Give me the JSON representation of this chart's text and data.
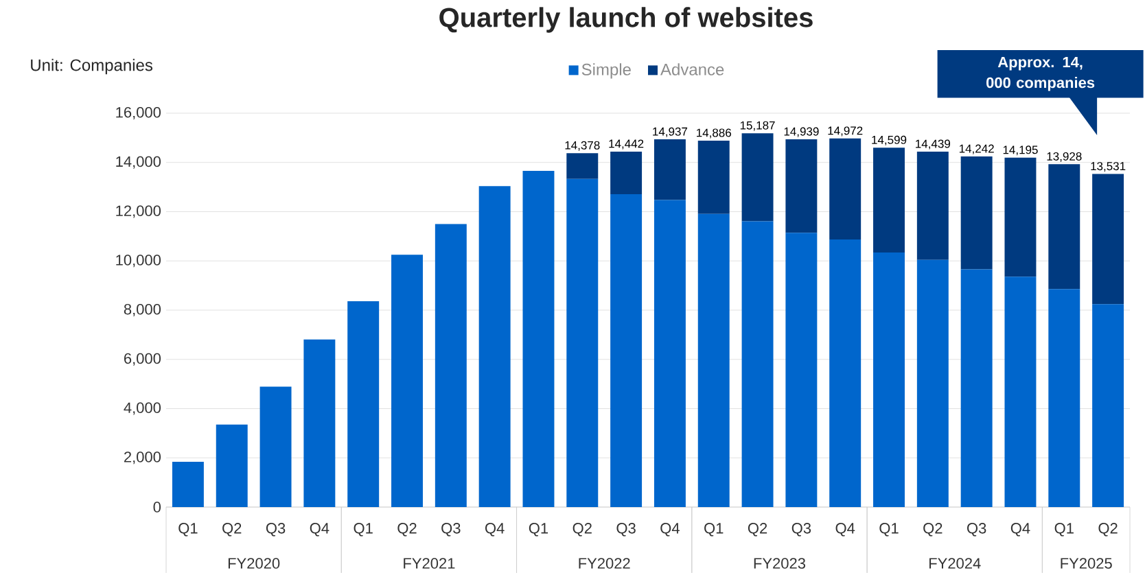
{
  "chart_data": {
    "type": "bar",
    "stacked": true,
    "title": "Quarterly launch of websites",
    "ylabel": "Unit: Companies",
    "categories": [
      "Q1",
      "Q2",
      "Q3",
      "Q4",
      "Q1",
      "Q2",
      "Q3",
      "Q4",
      "Q1",
      "Q2",
      "Q3",
      "Q4",
      "Q1",
      "Q2",
      "Q3",
      "Q4",
      "Q1",
      "Q2",
      "Q3",
      "Q4",
      "Q1",
      "Q2"
    ],
    "series": [
      {
        "name": "Simple",
        "color": "#0066cc",
        "values": [
          1840,
          3350,
          4890,
          6810,
          8360,
          10250,
          11500,
          13040,
          13660,
          13330,
          12710,
          12470,
          11910,
          11610,
          11140,
          10870,
          10340,
          10040,
          9660,
          9360,
          8860,
          8240
        ]
      },
      {
        "name": "Advance",
        "color": "#003a80",
        "values": [
          null,
          null,
          null,
          null,
          null,
          null,
          null,
          null,
          null,
          1048,
          1732,
          2467,
          2976,
          3577,
          3799,
          4102,
          4259,
          4399,
          4582,
          4835,
          5068,
          5291
        ]
      }
    ],
    "totals": [
      null,
      null,
      null,
      null,
      null,
      null,
      null,
      null,
      null,
      "14,378",
      "14,442",
      "14,937",
      "14,886",
      "15,187",
      "14,939",
      "14,972",
      "14,599",
      "14,439",
      "14,242",
      "14,195",
      "13,928",
      "13,531"
    ],
    "ylim": [
      0,
      16000
    ],
    "yticks": [
      0,
      {
        "value": 2000,
        "label": "2,000"
      },
      {
        "value": 4000,
        "label": "4,000"
      },
      {
        "value": 6000,
        "label": "6,000"
      },
      {
        "value": 8000,
        "label": "8,000"
      },
      {
        "value": 10000,
        "label": "10,000"
      },
      {
        "value": 12000,
        "label": "12,000"
      },
      {
        "value": 14000,
        "label": "14,000"
      },
      {
        "value": 16000,
        "label": "16,000"
      }
    ],
    "grid": "y",
    "legend": "top",
    "annotations": [
      "Approx. 14, 000 companies",
      "FY2020",
      "FY2021",
      "FY2022",
      "FY2023",
      "FY2024",
      "FY2025"
    ]
  }
}
